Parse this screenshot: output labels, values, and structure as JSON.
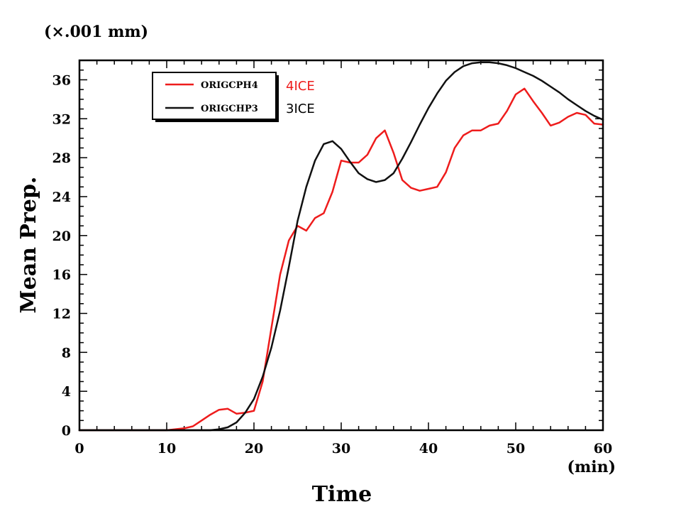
{
  "chart_data": {
    "type": "line",
    "y_unit": "(×.001 mm)",
    "ylabel": "Mean Prep.",
    "xlabel": "Time",
    "x_unit": "(min)",
    "xlim": [
      0,
      60
    ],
    "ylim": [
      0,
      38
    ],
    "xticks": [
      0,
      10,
      20,
      30,
      40,
      50,
      60
    ],
    "yticks": [
      0,
      4,
      8,
      12,
      16,
      20,
      24,
      28,
      32,
      36
    ],
    "grid": false,
    "legend_position": "top-left",
    "series": [
      {
        "name": "ORIGCPH4",
        "note": "4ICE",
        "color": "#ee1c1c",
        "x": [
          0,
          2,
          4,
          6,
          8,
          10,
          11,
          12,
          13,
          14,
          15,
          16,
          17,
          18,
          19,
          20,
          21,
          22,
          23,
          24,
          25,
          26,
          27,
          28,
          29,
          30,
          31,
          32,
          33,
          34,
          35,
          36,
          37,
          38,
          39,
          40,
          41,
          42,
          43,
          44,
          45,
          46,
          47,
          48,
          49,
          50,
          51,
          52,
          53,
          54,
          55,
          56,
          57,
          58,
          59,
          60
        ],
        "y": [
          0,
          0,
          0,
          0,
          0,
          0,
          0.1,
          0.2,
          0.4,
          1.0,
          1.6,
          2.1,
          2.2,
          1.7,
          1.8,
          2.0,
          5.0,
          10.5,
          16.0,
          19.5,
          21.0,
          20.5,
          21.8,
          22.3,
          24.5,
          27.7,
          27.5,
          27.5,
          28.3,
          30.0,
          30.8,
          28.5,
          25.7,
          24.9,
          24.6,
          24.8,
          25.0,
          26.5,
          29.0,
          30.3,
          30.8,
          30.8,
          31.3,
          31.5,
          32.8,
          34.5,
          35.1,
          33.8,
          32.6,
          31.3,
          31.6,
          32.2,
          32.6,
          32.4,
          31.5,
          31.4
        ]
      },
      {
        "name": "ORIGCHP3",
        "note": "3ICE",
        "color": "#111111",
        "x": [
          0,
          2,
          4,
          6,
          8,
          10,
          12,
          14,
          15,
          16,
          17,
          18,
          19,
          20,
          21,
          22,
          23,
          24,
          25,
          26,
          27,
          28,
          29,
          30,
          31,
          32,
          33,
          34,
          35,
          36,
          37,
          38,
          39,
          40,
          41,
          42,
          43,
          44,
          45,
          46,
          47,
          48,
          49,
          50,
          51,
          52,
          53,
          54,
          55,
          56,
          57,
          58,
          59,
          60
        ],
        "y": [
          0,
          0,
          0,
          0,
          0,
          0,
          0,
          0,
          0,
          0.1,
          0.3,
          0.8,
          1.8,
          3.2,
          5.5,
          8.5,
          12.3,
          16.8,
          21.5,
          25.0,
          27.7,
          29.4,
          29.7,
          28.9,
          27.6,
          26.4,
          25.8,
          25.5,
          25.7,
          26.4,
          27.9,
          29.6,
          31.4,
          33.1,
          34.6,
          35.9,
          36.8,
          37.4,
          37.7,
          37.8,
          37.8,
          37.7,
          37.5,
          37.2,
          36.8,
          36.4,
          35.9,
          35.3,
          34.7,
          34.0,
          33.4,
          32.8,
          32.3,
          31.9
        ]
      }
    ]
  }
}
